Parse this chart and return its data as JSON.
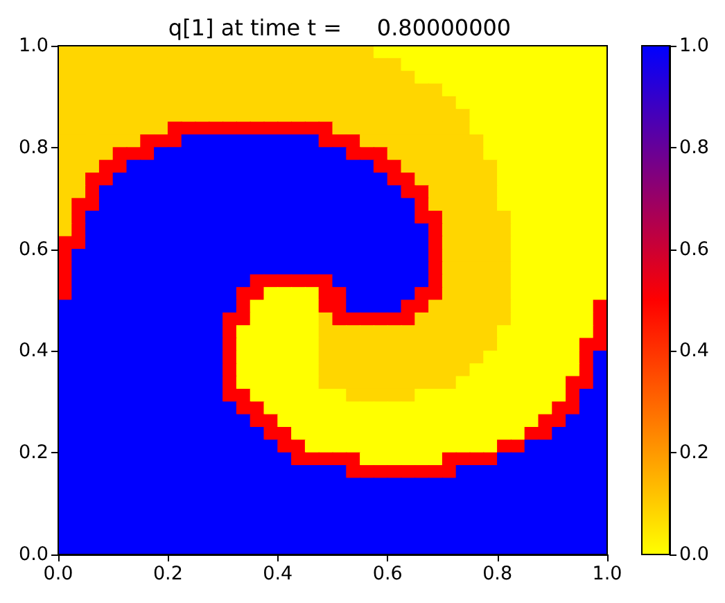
{
  "chart_data": {
    "type": "heatmap",
    "title": "q[1] at time t =     0.80000000",
    "xlim": [
      0,
      1
    ],
    "ylim": [
      0,
      1
    ],
    "xticks": [
      {
        "value": 0,
        "label": "0.0"
      },
      0.2,
      0.4,
      0.6,
      0.8,
      {
        "value": 1,
        "label": "1.0"
      }
    ],
    "yticks": [
      {
        "value": 0,
        "label": "0.0"
      },
      0.2,
      0.4,
      0.6,
      0.8,
      {
        "value": 1,
        "label": "1.0"
      }
    ],
    "clim": [
      0,
      1
    ],
    "cticks": [
      {
        "value": 0,
        "label": "0.0"
      },
      0.2,
      0.4,
      0.6,
      0.8,
      {
        "value": 1,
        "label": "1.0"
      }
    ],
    "cells": [
      [
        0.08,
        0.08,
        0.08,
        0.08,
        0.08,
        0.08,
        0.08,
        0.08,
        0.08,
        0.08,
        0.08,
        0.08,
        0.08,
        0.08,
        0.08,
        0.08,
        0.08,
        0.08,
        0.08,
        0.08,
        0.08,
        0.08,
        0.08,
        0,
        0,
        0,
        0,
        0,
        0,
        0,
        0,
        0,
        0,
        0,
        0,
        0,
        0,
        0,
        0,
        0
      ],
      [
        0.08,
        0.08,
        0.08,
        0.08,
        0.08,
        0.08,
        0.08,
        0.08,
        0.08,
        0.08,
        0.08,
        0.08,
        0.08,
        0.08,
        0.08,
        0.08,
        0.08,
        0.08,
        0.08,
        0.08,
        0.08,
        0.08,
        0.08,
        0.08,
        0.08,
        0,
        0,
        0,
        0,
        0,
        0,
        0,
        0,
        0,
        0,
        0,
        0,
        0,
        0,
        0
      ],
      [
        0.08,
        0.08,
        0.08,
        0.08,
        0.08,
        0.08,
        0.08,
        0.08,
        0.08,
        0.08,
        0.08,
        0.08,
        0.08,
        0.08,
        0.08,
        0.08,
        0.08,
        0.08,
        0.08,
        0.08,
        0.08,
        0.08,
        0.08,
        0.08,
        0.08,
        0.08,
        0,
        0,
        0,
        0,
        0,
        0,
        0,
        0,
        0,
        0,
        0,
        0,
        0,
        0
      ],
      [
        0.08,
        0.08,
        0.08,
        0.08,
        0.08,
        0.08,
        0.08,
        0.08,
        0.08,
        0.08,
        0.08,
        0.08,
        0.08,
        0.08,
        0.08,
        0.08,
        0.08,
        0.08,
        0.08,
        0.08,
        0.08,
        0.08,
        0.08,
        0.08,
        0.08,
        0.08,
        0.08,
        0.08,
        0,
        0,
        0,
        0,
        0,
        0,
        0,
        0,
        0,
        0,
        0,
        0
      ],
      [
        0.08,
        0.08,
        0.08,
        0.08,
        0.08,
        0.08,
        0.08,
        0.08,
        0.08,
        0.08,
        0.08,
        0.08,
        0.08,
        0.08,
        0.08,
        0.08,
        0.08,
        0.08,
        0.08,
        0.08,
        0.08,
        0.08,
        0.08,
        0.08,
        0.08,
        0.08,
        0.08,
        0.08,
        0.08,
        0,
        0,
        0,
        0,
        0,
        0,
        0,
        0,
        0,
        0,
        0
      ],
      [
        0.08,
        0.08,
        0.08,
        0.08,
        0.08,
        0.08,
        0.08,
        0.08,
        0.08,
        0.08,
        0.08,
        0.08,
        0.08,
        0.08,
        0.08,
        0.08,
        0.08,
        0.08,
        0.08,
        0.08,
        0.08,
        0.08,
        0.08,
        0.08,
        0.08,
        0.08,
        0.08,
        0.08,
        0.08,
        0.08,
        0,
        0,
        0,
        0,
        0,
        0,
        0,
        0,
        0,
        0
      ],
      [
        0.08,
        0.08,
        0.08,
        0.08,
        0.08,
        0.08,
        0.08,
        0.08,
        0.5,
        0.5,
        0.5,
        0.5,
        0.5,
        0.5,
        0.5,
        0.5,
        0.5,
        0.5,
        0.5,
        0.5,
        0.08,
        0.08,
        0.08,
        0.08,
        0.08,
        0.08,
        0.08,
        0.08,
        0.08,
        0.08,
        0,
        0,
        0,
        0,
        0,
        0,
        0,
        0,
        0,
        0
      ],
      [
        0.08,
        0.08,
        0.08,
        0.08,
        0.08,
        0.08,
        0.5,
        0.5,
        0.5,
        1,
        1,
        1,
        1,
        1,
        1,
        1,
        1,
        1,
        1,
        0.5,
        0.5,
        0.5,
        0.08,
        0.08,
        0.08,
        0.08,
        0.08,
        0.08,
        0.08,
        0.08,
        0.08,
        0,
        0,
        0,
        0,
        0,
        0,
        0,
        0,
        0
      ],
      [
        0.08,
        0.08,
        0.08,
        0.08,
        0.5,
        0.5,
        0.5,
        1,
        1,
        1,
        1,
        1,
        1,
        1,
        1,
        1,
        1,
        1,
        1,
        1,
        1,
        0.5,
        0.5,
        0.5,
        0.08,
        0.08,
        0.08,
        0.08,
        0.08,
        0.08,
        0.08,
        0,
        0,
        0,
        0,
        0,
        0,
        0,
        0,
        0
      ],
      [
        0.08,
        0.08,
        0.08,
        0.5,
        0.5,
        1,
        1,
        1,
        1,
        1,
        1,
        1,
        1,
        1,
        1,
        1,
        1,
        1,
        1,
        1,
        1,
        1,
        1,
        0.5,
        0.5,
        0.08,
        0.08,
        0.08,
        0.08,
        0.08,
        0.08,
        0.08,
        0,
        0,
        0,
        0,
        0,
        0,
        0,
        0
      ],
      [
        0.08,
        0.08,
        0.5,
        0.5,
        1,
        1,
        1,
        1,
        1,
        1,
        1,
        1,
        1,
        1,
        1,
        1,
        1,
        1,
        1,
        1,
        1,
        1,
        1,
        1,
        0.5,
        0.5,
        0.08,
        0.08,
        0.08,
        0.08,
        0.08,
        0.08,
        0,
        0,
        0,
        0,
        0,
        0,
        0,
        0
      ],
      [
        0.08,
        0.08,
        0.5,
        1,
        1,
        1,
        1,
        1,
        1,
        1,
        1,
        1,
        1,
        1,
        1,
        1,
        1,
        1,
        1,
        1,
        1,
        1,
        1,
        1,
        1,
        0.5,
        0.5,
        0.08,
        0.08,
        0.08,
        0.08,
        0.08,
        0,
        0,
        0,
        0,
        0,
        0,
        0,
        0
      ],
      [
        0.08,
        0.5,
        0.5,
        1,
        1,
        1,
        1,
        1,
        1,
        1,
        1,
        1,
        1,
        1,
        1,
        1,
        1,
        1,
        1,
        1,
        1,
        1,
        1,
        1,
        1,
        1,
        0.5,
        0.08,
        0.08,
        0.08,
        0.08,
        0.08,
        0,
        0,
        0,
        0,
        0,
        0,
        0,
        0
      ],
      [
        0.08,
        0.5,
        1,
        1,
        1,
        1,
        1,
        1,
        1,
        1,
        1,
        1,
        1,
        1,
        1,
        1,
        1,
        1,
        1,
        1,
        1,
        1,
        1,
        1,
        1,
        1,
        0.5,
        0.5,
        0.08,
        0.08,
        0.08,
        0.08,
        0.08,
        0,
        0,
        0,
        0,
        0,
        0,
        0
      ],
      [
        0.08,
        0.5,
        1,
        1,
        1,
        1,
        1,
        1,
        1,
        1,
        1,
        1,
        1,
        1,
        1,
        1,
        1,
        1,
        1,
        1,
        1,
        1,
        1,
        1,
        1,
        1,
        1,
        0.5,
        0.08,
        0.08,
        0.08,
        0.08,
        0.08,
        0,
        0,
        0,
        0,
        0,
        0,
        0
      ],
      [
        0.5,
        0.5,
        1,
        1,
        1,
        1,
        1,
        1,
        1,
        1,
        1,
        1,
        1,
        1,
        1,
        1,
        1,
        1,
        1,
        1,
        1,
        1,
        1,
        1,
        1,
        1,
        1,
        0.5,
        0.08,
        0.08,
        0.08,
        0.08,
        0.08,
        0,
        0,
        0,
        0,
        0,
        0,
        0
      ],
      [
        0.5,
        1,
        1,
        1,
        1,
        1,
        1,
        1,
        1,
        1,
        1,
        1,
        1,
        1,
        1,
        1,
        1,
        1,
        1,
        1,
        1,
        1,
        1,
        1,
        1,
        1,
        1,
        0.5,
        0.08,
        0.08,
        0.08,
        0.08,
        0.08,
        0,
        0,
        0,
        0,
        0,
        0,
        0
      ],
      [
        0.5,
        1,
        1,
        1,
        1,
        1,
        1,
        1,
        1,
        1,
        1,
        1,
        1,
        1,
        1,
        1,
        1,
        1,
        1,
        1,
        1,
        1,
        1,
        1,
        1,
        1,
        1,
        0.5,
        0.08,
        0.08,
        0.08,
        0.08,
        0.08,
        0,
        0,
        0,
        0,
        0,
        0,
        0
      ],
      [
        0.5,
        1,
        1,
        1,
        1,
        1,
        1,
        1,
        1,
        1,
        1,
        1,
        1,
        1,
        0.5,
        0.5,
        0.5,
        0.5,
        0.5,
        0.5,
        1,
        1,
        1,
        1,
        1,
        1,
        1,
        0.5,
        0.08,
        0.08,
        0.08,
        0.08,
        0.08,
        0,
        0,
        0,
        0,
        0,
        0,
        0
      ],
      [
        0.5,
        1,
        1,
        1,
        1,
        1,
        1,
        1,
        1,
        1,
        1,
        1,
        1,
        0.5,
        0.5,
        0,
        0,
        0,
        0,
        0.5,
        0.5,
        1,
        1,
        1,
        1,
        1,
        0.5,
        0.5,
        0.08,
        0.08,
        0.08,
        0.08,
        0.08,
        0,
        0,
        0,
        0,
        0,
        0,
        0
      ],
      [
        1,
        1,
        1,
        1,
        1,
        1,
        1,
        1,
        1,
        1,
        1,
        1,
        1,
        0.5,
        0,
        0,
        0,
        0,
        0,
        0.5,
        0.5,
        1,
        1,
        1,
        1,
        0.5,
        0.5,
        0.08,
        0.08,
        0.08,
        0.08,
        0.08,
        0.08,
        0,
        0,
        0,
        0,
        0,
        0,
        0.5
      ],
      [
        1,
        1,
        1,
        1,
        1,
        1,
        1,
        1,
        1,
        1,
        1,
        1,
        0.5,
        0.5,
        0,
        0,
        0,
        0,
        0,
        0.08,
        0.5,
        0.5,
        0.5,
        0.5,
        0.5,
        0.5,
        0.08,
        0.08,
        0.08,
        0.08,
        0.08,
        0.08,
        0.08,
        0,
        0,
        0,
        0,
        0,
        0,
        0.5
      ],
      [
        1,
        1,
        1,
        1,
        1,
        1,
        1,
        1,
        1,
        1,
        1,
        1,
        0.5,
        0,
        0,
        0,
        0,
        0,
        0,
        0.08,
        0.08,
        0.08,
        0.08,
        0.08,
        0.08,
        0.08,
        0.08,
        0.08,
        0.08,
        0.08,
        0.08,
        0.08,
        0,
        0,
        0,
        0,
        0,
        0,
        0,
        0.5
      ],
      [
        1,
        1,
        1,
        1,
        1,
        1,
        1,
        1,
        1,
        1,
        1,
        1,
        0.5,
        0,
        0,
        0,
        0,
        0,
        0,
        0.08,
        0.08,
        0.08,
        0.08,
        0.08,
        0.08,
        0.08,
        0.08,
        0.08,
        0.08,
        0.08,
        0.08,
        0.08,
        0,
        0,
        0,
        0,
        0,
        0,
        0.5,
        0.5
      ],
      [
        1,
        1,
        1,
        1,
        1,
        1,
        1,
        1,
        1,
        1,
        1,
        1,
        0.5,
        0,
        0,
        0,
        0,
        0,
        0,
        0.08,
        0.08,
        0.08,
        0.08,
        0.08,
        0.08,
        0.08,
        0.08,
        0.08,
        0.08,
        0.08,
        0.08,
        0,
        0,
        0,
        0,
        0,
        0,
        0,
        0.5,
        1
      ],
      [
        1,
        1,
        1,
        1,
        1,
        1,
        1,
        1,
        1,
        1,
        1,
        1,
        0.5,
        0,
        0,
        0,
        0,
        0,
        0,
        0.08,
        0.08,
        0.08,
        0.08,
        0.08,
        0.08,
        0.08,
        0.08,
        0.08,
        0.08,
        0.08,
        0,
        0,
        0,
        0,
        0,
        0,
        0,
        0,
        0.5,
        1
      ],
      [
        1,
        1,
        1,
        1,
        1,
        1,
        1,
        1,
        1,
        1,
        1,
        1,
        0.5,
        0,
        0,
        0,
        0,
        0,
        0,
        0.08,
        0.08,
        0.08,
        0.08,
        0.08,
        0.08,
        0.08,
        0.08,
        0.08,
        0.08,
        0,
        0,
        0,
        0,
        0,
        0,
        0,
        0,
        0.5,
        0.5,
        1
      ],
      [
        1,
        1,
        1,
        1,
        1,
        1,
        1,
        1,
        1,
        1,
        1,
        1,
        0.5,
        0.5,
        0,
        0,
        0,
        0,
        0,
        0,
        0,
        0.08,
        0.08,
        0.08,
        0.08,
        0.08,
        0,
        0,
        0,
        0,
        0,
        0,
        0,
        0,
        0,
        0,
        0,
        0.5,
        1,
        1
      ],
      [
        1,
        1,
        1,
        1,
        1,
        1,
        1,
        1,
        1,
        1,
        1,
        1,
        1,
        0.5,
        0.5,
        0,
        0,
        0,
        0,
        0,
        0,
        0,
        0,
        0,
        0,
        0,
        0,
        0,
        0,
        0,
        0,
        0,
        0,
        0,
        0,
        0,
        0.5,
        0.5,
        1,
        1
      ],
      [
        1,
        1,
        1,
        1,
        1,
        1,
        1,
        1,
        1,
        1,
        1,
        1,
        1,
        1,
        0.5,
        0.5,
        0,
        0,
        0,
        0,
        0,
        0,
        0,
        0,
        0,
        0,
        0,
        0,
        0,
        0,
        0,
        0,
        0,
        0,
        0,
        0.5,
        0.5,
        1,
        1,
        1
      ],
      [
        1,
        1,
        1,
        1,
        1,
        1,
        1,
        1,
        1,
        1,
        1,
        1,
        1,
        1,
        1,
        0.5,
        0.5,
        0,
        0,
        0,
        0,
        0,
        0,
        0,
        0,
        0,
        0,
        0,
        0,
        0,
        0,
        0,
        0,
        0,
        0.5,
        0.5,
        1,
        1,
        1,
        1
      ],
      [
        1,
        1,
        1,
        1,
        1,
        1,
        1,
        1,
        1,
        1,
        1,
        1,
        1,
        1,
        1,
        1,
        0.5,
        0.5,
        0,
        0,
        0,
        0,
        0,
        0,
        0,
        0,
        0,
        0,
        0,
        0,
        0,
        0,
        0.5,
        0.5,
        1,
        1,
        1,
        1,
        1,
        1
      ],
      [
        1,
        1,
        1,
        1,
        1,
        1,
        1,
        1,
        1,
        1,
        1,
        1,
        1,
        1,
        1,
        1,
        1,
        0.5,
        0.5,
        0.5,
        0.5,
        0.5,
        0,
        0,
        0,
        0,
        0,
        0,
        0.5,
        0.5,
        0.5,
        0.5,
        1,
        1,
        1,
        1,
        1,
        1,
        1,
        1
      ],
      [
        1,
        1,
        1,
        1,
        1,
        1,
        1,
        1,
        1,
        1,
        1,
        1,
        1,
        1,
        1,
        1,
        1,
        1,
        1,
        1,
        1,
        0.5,
        0.5,
        0.5,
        0.5,
        0.5,
        0.5,
        0.5,
        0.5,
        1,
        1,
        1,
        1,
        1,
        1,
        1,
        1,
        1,
        1,
        1
      ],
      [
        1,
        1,
        1,
        1,
        1,
        1,
        1,
        1,
        1,
        1,
        1,
        1,
        1,
        1,
        1,
        1,
        1,
        1,
        1,
        1,
        1,
        1,
        1,
        1,
        1,
        1,
        1,
        1,
        1,
        1,
        1,
        1,
        1,
        1,
        1,
        1,
        1,
        1,
        1,
        1
      ],
      [
        1,
        1,
        1,
        1,
        1,
        1,
        1,
        1,
        1,
        1,
        1,
        1,
        1,
        1,
        1,
        1,
        1,
        1,
        1,
        1,
        1,
        1,
        1,
        1,
        1,
        1,
        1,
        1,
        1,
        1,
        1,
        1,
        1,
        1,
        1,
        1,
        1,
        1,
        1,
        1
      ],
      [
        1,
        1,
        1,
        1,
        1,
        1,
        1,
        1,
        1,
        1,
        1,
        1,
        1,
        1,
        1,
        1,
        1,
        1,
        1,
        1,
        1,
        1,
        1,
        1,
        1,
        1,
        1,
        1,
        1,
        1,
        1,
        1,
        1,
        1,
        1,
        1,
        1,
        1,
        1,
        1
      ],
      [
        1,
        1,
        1,
        1,
        1,
        1,
        1,
        1,
        1,
        1,
        1,
        1,
        1,
        1,
        1,
        1,
        1,
        1,
        1,
        1,
        1,
        1,
        1,
        1,
        1,
        1,
        1,
        1,
        1,
        1,
        1,
        1,
        1,
        1,
        1,
        1,
        1,
        1,
        1,
        1
      ],
      [
        1,
        1,
        1,
        1,
        1,
        1,
        1,
        1,
        1,
        1,
        1,
        1,
        1,
        1,
        1,
        1,
        1,
        1,
        1,
        1,
        1,
        1,
        1,
        1,
        1,
        1,
        1,
        1,
        1,
        1,
        1,
        1,
        1,
        1,
        1,
        1,
        1,
        1,
        1,
        1
      ],
      [
        1,
        1,
        1,
        1,
        1,
        1,
        1,
        1,
        1,
        1,
        1,
        1,
        1,
        1,
        1,
        1,
        1,
        1,
        1,
        1,
        1,
        1,
        1,
        1,
        1,
        1,
        1,
        1,
        1,
        1,
        1,
        1,
        1,
        1,
        1,
        1,
        1,
        1,
        1,
        1
      ]
    ]
  }
}
